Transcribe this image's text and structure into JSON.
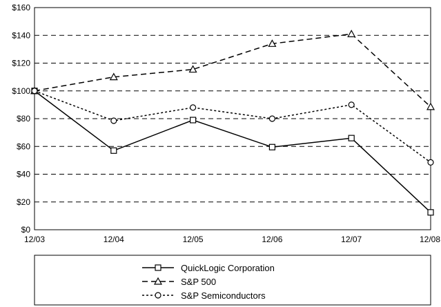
{
  "chart_data": {
    "type": "line",
    "categories": [
      "12/03",
      "12/04",
      "12/05",
      "12/06",
      "12/07",
      "12/08"
    ],
    "ylim": [
      0,
      160
    ],
    "yticks": [
      0,
      20,
      40,
      60,
      80,
      100,
      120,
      140,
      160
    ],
    "ytick_labels": [
      "$0",
      "$20",
      "$40",
      "$60",
      "$80",
      "$100",
      "$120",
      "$140",
      "$160"
    ],
    "grid": "horizontal dashed",
    "legend_placement": "bottom",
    "series": [
      {
        "name": "QuickLogic Corporation",
        "values": [
          100,
          57,
          79,
          59.5,
          66,
          12.5
        ],
        "marker": "square",
        "line_style": "solid",
        "color": "#000000"
      },
      {
        "name": "S&P 500",
        "values": [
          100,
          110,
          115.5,
          134,
          141,
          88.5
        ],
        "marker": "triangle",
        "line_style": "dashed",
        "color": "#000000"
      },
      {
        "name": "S&P Semiconductors",
        "values": [
          100,
          78.5,
          88,
          80,
          90,
          48.5
        ],
        "marker": "circle",
        "line_style": "dotted",
        "color": "#000000"
      }
    ]
  }
}
